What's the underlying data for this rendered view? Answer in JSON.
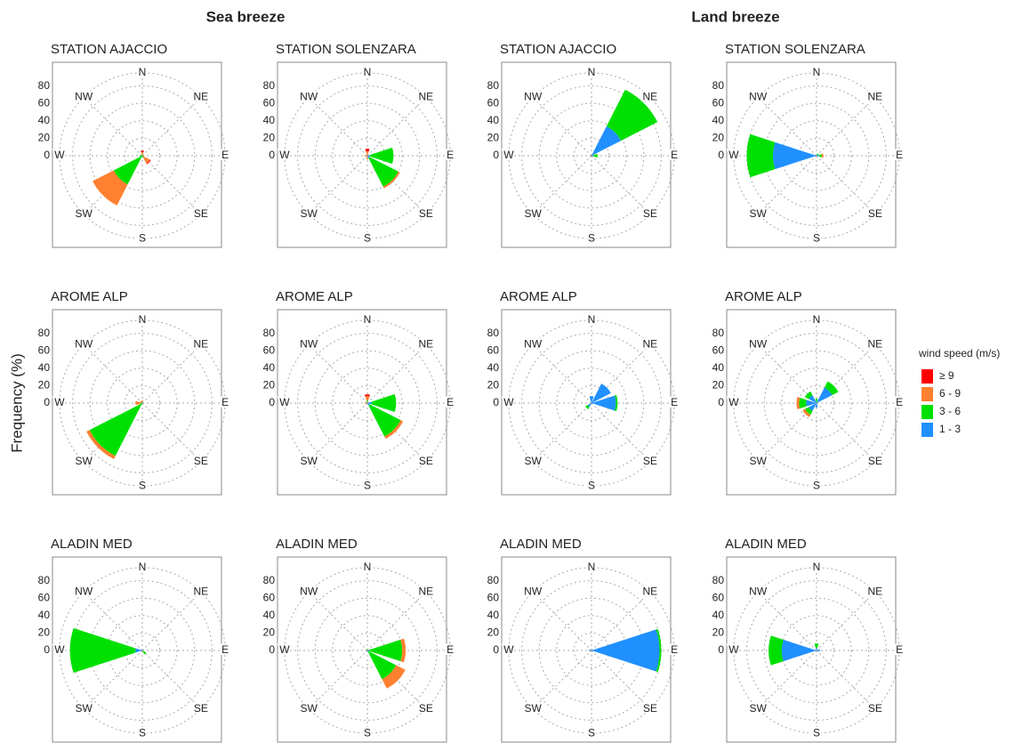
{
  "group_titles": [
    "Sea breeze",
    "Land breeze"
  ],
  "y_label": "Frequency (%)",
  "legend": {
    "title": "wind speed (m/s)",
    "entries": [
      {
        "name": "≥ 9",
        "color": "#ff0000"
      },
      {
        "name": "6 - 9",
        "color": "#ff8030"
      },
      {
        "name": "3 - 6",
        "color": "#00e000"
      },
      {
        "name": "1 - 3",
        "color": "#2090ff"
      }
    ]
  },
  "chart_data": [
    {
      "type": "rose",
      "title": "STATION AJACCIO",
      "directions": [
        "N",
        "NE",
        "E",
        "SE",
        "S",
        "SW",
        "W",
        "NW"
      ],
      "rlim": [
        0,
        95
      ],
      "rticks": [
        0,
        20,
        40,
        60,
        80
      ],
      "series": [
        {
          "values": [
            2,
            0,
            0,
            1,
            0,
            0,
            0,
            0
          ]
        },
        {
          "values": [
            3,
            1,
            1,
            8,
            0,
            27,
            0,
            1
          ]
        },
        {
          "values": [
            1,
            1,
            1,
            2,
            2,
            35,
            3,
            1
          ]
        },
        {
          "values": [
            0,
            0,
            0,
            0,
            0,
            2,
            0,
            0
          ]
        }
      ]
    },
    {
      "type": "rose",
      "title": "STATION SOLENZARA",
      "directions": [
        "N",
        "NE",
        "E",
        "SE",
        "S",
        "SW",
        "W",
        "NW"
      ],
      "rlim": [
        0,
        95
      ],
      "rticks": [
        0,
        20,
        40,
        60,
        80
      ],
      "series": [
        {
          "values": [
            3,
            0,
            0,
            0,
            0,
            0,
            0,
            0
          ]
        },
        {
          "values": [
            5,
            0,
            0,
            2,
            4,
            0,
            3,
            0
          ]
        },
        {
          "values": [
            0,
            0,
            27,
            37,
            0,
            0,
            0,
            0
          ]
        },
        {
          "values": [
            0,
            0,
            3,
            3,
            0,
            0,
            0,
            0
          ]
        }
      ]
    },
    {
      "type": "rose",
      "title": "STATION AJACCIO",
      "directions": [
        "N",
        "NE",
        "E",
        "SE",
        "S",
        "SW",
        "W",
        "NW"
      ],
      "rlim": [
        0,
        95
      ],
      "rticks": [
        0,
        20,
        40,
        60,
        80
      ],
      "series": [
        {
          "values": [
            0,
            0,
            0,
            0,
            0,
            0,
            0,
            0
          ]
        },
        {
          "values": [
            0,
            0,
            0,
            0,
            0,
            0,
            0,
            0
          ]
        },
        {
          "values": [
            0,
            47,
            5,
            0,
            0,
            0,
            0,
            0
          ]
        },
        {
          "values": [
            0,
            38,
            2,
            0,
            0,
            0,
            0,
            0
          ]
        }
      ]
    },
    {
      "type": "rose",
      "title": "STATION SOLENZARA",
      "directions": [
        "N",
        "NE",
        "E",
        "SE",
        "S",
        "SW",
        "W",
        "NW"
      ],
      "rlim": [
        0,
        95
      ],
      "rticks": [
        0,
        20,
        40,
        60,
        80
      ],
      "series": [
        {
          "values": [
            0,
            0,
            0,
            0,
            0,
            0,
            0,
            0
          ]
        },
        {
          "values": [
            0,
            0,
            2,
            0,
            0,
            0,
            0,
            0
          ]
        },
        {
          "values": [
            0,
            3,
            3,
            0,
            0,
            0,
            30,
            0
          ]
        },
        {
          "values": [
            0,
            0,
            3,
            0,
            0,
            0,
            50,
            0
          ]
        }
      ]
    },
    {
      "type": "rose",
      "title": "AROME ALP",
      "directions": [
        "N",
        "NE",
        "E",
        "SE",
        "S",
        "SW",
        "W",
        "NW"
      ],
      "rlim": [
        0,
        95
      ],
      "rticks": [
        0,
        20,
        40,
        60,
        80
      ],
      "series": [
        {
          "values": [
            0,
            0,
            0,
            0,
            0,
            0,
            0,
            0
          ]
        },
        {
          "values": [
            2,
            0,
            0,
            0,
            0,
            4,
            6,
            2
          ]
        },
        {
          "values": [
            1,
            0,
            0,
            0,
            0,
            68,
            2,
            1
          ]
        },
        {
          "values": [
            0,
            0,
            0,
            0,
            0,
            0,
            0,
            0
          ]
        }
      ]
    },
    {
      "type": "rose",
      "title": "AROME ALP",
      "directions": [
        "N",
        "NE",
        "E",
        "SE",
        "S",
        "SW",
        "W",
        "NW"
      ],
      "rlim": [
        0,
        95
      ],
      "rticks": [
        0,
        20,
        40,
        60,
        80
      ],
      "series": [
        {
          "values": [
            2,
            0,
            0,
            0,
            0,
            0,
            0,
            0
          ]
        },
        {
          "values": [
            5,
            0,
            0,
            3,
            0,
            0,
            3,
            0
          ]
        },
        {
          "values": [
            3,
            0,
            28,
            40,
            0,
            0,
            0,
            0
          ]
        },
        {
          "values": [
            0,
            0,
            5,
            3,
            0,
            0,
            0,
            0
          ]
        }
      ]
    },
    {
      "type": "rose",
      "title": "AROME ALP",
      "directions": [
        "N",
        "NE",
        "E",
        "SE",
        "S",
        "SW",
        "W",
        "NW"
      ],
      "rlim": [
        0,
        95
      ],
      "rticks": [
        0,
        20,
        40,
        60,
        80
      ],
      "series": [
        {
          "values": [
            0,
            0,
            0,
            0,
            0,
            0,
            0,
            0
          ]
        },
        {
          "values": [
            0,
            0,
            0,
            0,
            0,
            0,
            0,
            0
          ]
        },
        {
          "values": [
            0,
            0,
            2,
            0,
            0,
            3,
            0,
            0
          ]
        },
        {
          "values": [
            8,
            25,
            28,
            0,
            0,
            5,
            0,
            0
          ]
        }
      ]
    },
    {
      "type": "rose",
      "title": "AROME ALP",
      "directions": [
        "N",
        "NE",
        "E",
        "SE",
        "S",
        "SW",
        "W",
        "NW"
      ],
      "rlim": [
        0,
        95
      ],
      "rticks": [
        0,
        20,
        40,
        60,
        80
      ],
      "series": [
        {
          "values": [
            0,
            0,
            0,
            0,
            0,
            0,
            0,
            0
          ]
        },
        {
          "values": [
            0,
            0,
            0,
            0,
            0,
            3,
            3,
            0
          ]
        },
        {
          "values": [
            5,
            8,
            0,
            0,
            0,
            5,
            8,
            5
          ]
        },
        {
          "values": [
            0,
            20,
            0,
            0,
            5,
            10,
            12,
            10
          ]
        }
      ]
    },
    {
      "type": "rose",
      "title": "ALADIN MED",
      "directions": [
        "N",
        "NE",
        "E",
        "SE",
        "S",
        "SW",
        "W",
        "NW"
      ],
      "rlim": [
        0,
        95
      ],
      "rticks": [
        0,
        20,
        40,
        60,
        80
      ],
      "series": [
        {
          "values": [
            0,
            0,
            0,
            0,
            0,
            0,
            0,
            0
          ]
        },
        {
          "values": [
            0,
            0,
            0,
            0,
            0,
            0,
            0,
            0
          ]
        },
        {
          "values": [
            0,
            0,
            0,
            5,
            0,
            0,
            75,
            0
          ]
        },
        {
          "values": [
            0,
            0,
            0,
            0,
            0,
            0,
            8,
            0
          ]
        }
      ]
    },
    {
      "type": "rose",
      "title": "ALADIN MED",
      "directions": [
        "N",
        "NE",
        "E",
        "SE",
        "S",
        "SW",
        "W",
        "NW"
      ],
      "rlim": [
        0,
        95
      ],
      "rticks": [
        0,
        20,
        40,
        60,
        80
      ],
      "series": [
        {
          "values": [
            0,
            0,
            0,
            0,
            0,
            0,
            0,
            0
          ]
        },
        {
          "values": [
            0,
            0,
            4,
            12,
            0,
            0,
            0,
            0
          ]
        },
        {
          "values": [
            2,
            0,
            38,
            35,
            0,
            0,
            0,
            0
          ]
        },
        {
          "values": [
            0,
            0,
            2,
            2,
            0,
            0,
            0,
            0
          ]
        }
      ]
    },
    {
      "type": "rose",
      "title": "ALADIN MED",
      "directions": [
        "N",
        "NE",
        "E",
        "SE",
        "S",
        "SW",
        "W",
        "NW"
      ],
      "rlim": [
        0,
        95
      ],
      "rticks": [
        0,
        20,
        40,
        60,
        80
      ],
      "series": [
        {
          "values": [
            0,
            0,
            0,
            0,
            0,
            0,
            0,
            0
          ]
        },
        {
          "values": [
            0,
            0,
            0,
            0,
            0,
            0,
            0,
            0
          ]
        },
        {
          "values": [
            0,
            0,
            2,
            0,
            0,
            0,
            0,
            0
          ]
        },
        {
          "values": [
            0,
            0,
            78,
            0,
            0,
            0,
            3,
            0
          ]
        }
      ]
    },
    {
      "type": "rose",
      "title": "ALADIN MED",
      "directions": [
        "N",
        "NE",
        "E",
        "SE",
        "S",
        "SW",
        "W",
        "NW"
      ],
      "rlim": [
        0,
        95
      ],
      "rticks": [
        0,
        20,
        40,
        60,
        80
      ],
      "series": [
        {
          "values": [
            0,
            0,
            0,
            0,
            0,
            0,
            0,
            0
          ]
        },
        {
          "values": [
            0,
            0,
            0,
            0,
            0,
            0,
            0,
            0
          ]
        },
        {
          "values": [
            5,
            0,
            0,
            0,
            0,
            0,
            15,
            0
          ]
        },
        {
          "values": [
            3,
            0,
            4,
            0,
            0,
            0,
            40,
            0
          ]
        }
      ]
    }
  ]
}
